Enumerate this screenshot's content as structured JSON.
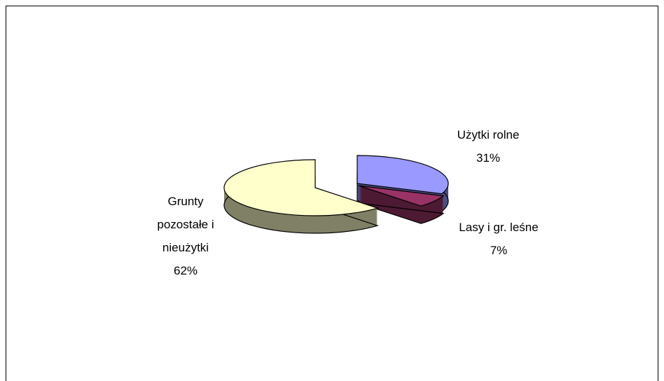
{
  "chart_data": {
    "type": "pie",
    "categories": [
      "Użytki rolne",
      "Lasy i gr. leśne",
      "Grunty pozostałe i nieużytki"
    ],
    "values": [
      31,
      7,
      62
    ],
    "value_labels": [
      "31%",
      "7%",
      "62%"
    ],
    "colors": [
      "#9999ff",
      "#993366",
      "#ffffcc"
    ],
    "side_colors": [
      "#4d4d80",
      "#4d1a33",
      "#808066"
    ]
  }
}
